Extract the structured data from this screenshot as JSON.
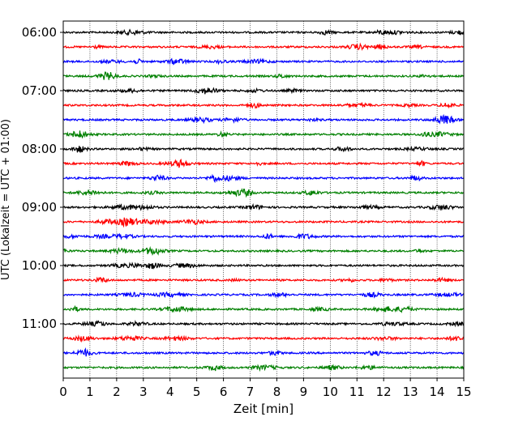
{
  "chart_data": {
    "type": "line",
    "title": "",
    "xlabel": "Zeit  [min]",
    "ylabel": "UTC (Lokalzeit = UTC + 01:00)",
    "xlim": [
      0,
      15
    ],
    "x_ticks": [
      0,
      1,
      2,
      3,
      4,
      5,
      6,
      7,
      8,
      9,
      10,
      11,
      12,
      13,
      14,
      15
    ],
    "x_tick_labels": [
      "0",
      "1",
      "2",
      "3",
      "4",
      "5",
      "6",
      "7",
      "8",
      "9",
      "10",
      "11",
      "12",
      "13",
      "14",
      "15"
    ],
    "vertical_grid": true,
    "grid_style": "dotted",
    "y_tick_labels": [
      "06:00",
      "07:00",
      "08:00",
      "09:00",
      "10:00",
      "11:00"
    ],
    "y_tick_trace_index": [
      0,
      4,
      8,
      12,
      16,
      20
    ],
    "trace_interval_minutes": 15,
    "trace_colors": [
      "#000000",
      "#ff0000",
      "#0000ff",
      "#008000"
    ],
    "traces": [
      {
        "start": "06:00",
        "color": "#000000"
      },
      {
        "start": "06:15",
        "color": "#ff0000"
      },
      {
        "start": "06:30",
        "color": "#0000ff"
      },
      {
        "start": "06:45",
        "color": "#008000"
      },
      {
        "start": "07:00",
        "color": "#000000"
      },
      {
        "start": "07:15",
        "color": "#ff0000"
      },
      {
        "start": "07:30",
        "color": "#0000ff"
      },
      {
        "start": "07:45",
        "color": "#008000"
      },
      {
        "start": "08:00",
        "color": "#000000"
      },
      {
        "start": "08:15",
        "color": "#ff0000"
      },
      {
        "start": "08:30",
        "color": "#0000ff"
      },
      {
        "start": "08:45",
        "color": "#008000"
      },
      {
        "start": "09:00",
        "color": "#000000"
      },
      {
        "start": "09:15",
        "color": "#ff0000"
      },
      {
        "start": "09:30",
        "color": "#0000ff"
      },
      {
        "start": "09:45",
        "color": "#008000"
      },
      {
        "start": "10:00",
        "color": "#000000"
      },
      {
        "start": "10:15",
        "color": "#ff0000"
      },
      {
        "start": "10:30",
        "color": "#0000ff"
      },
      {
        "start": "10:45",
        "color": "#008000"
      },
      {
        "start": "11:00",
        "color": "#000000"
      },
      {
        "start": "11:15",
        "color": "#ff0000"
      },
      {
        "start": "11:30",
        "color": "#0000ff"
      },
      {
        "start": "11:45",
        "color": "#008000"
      }
    ]
  }
}
